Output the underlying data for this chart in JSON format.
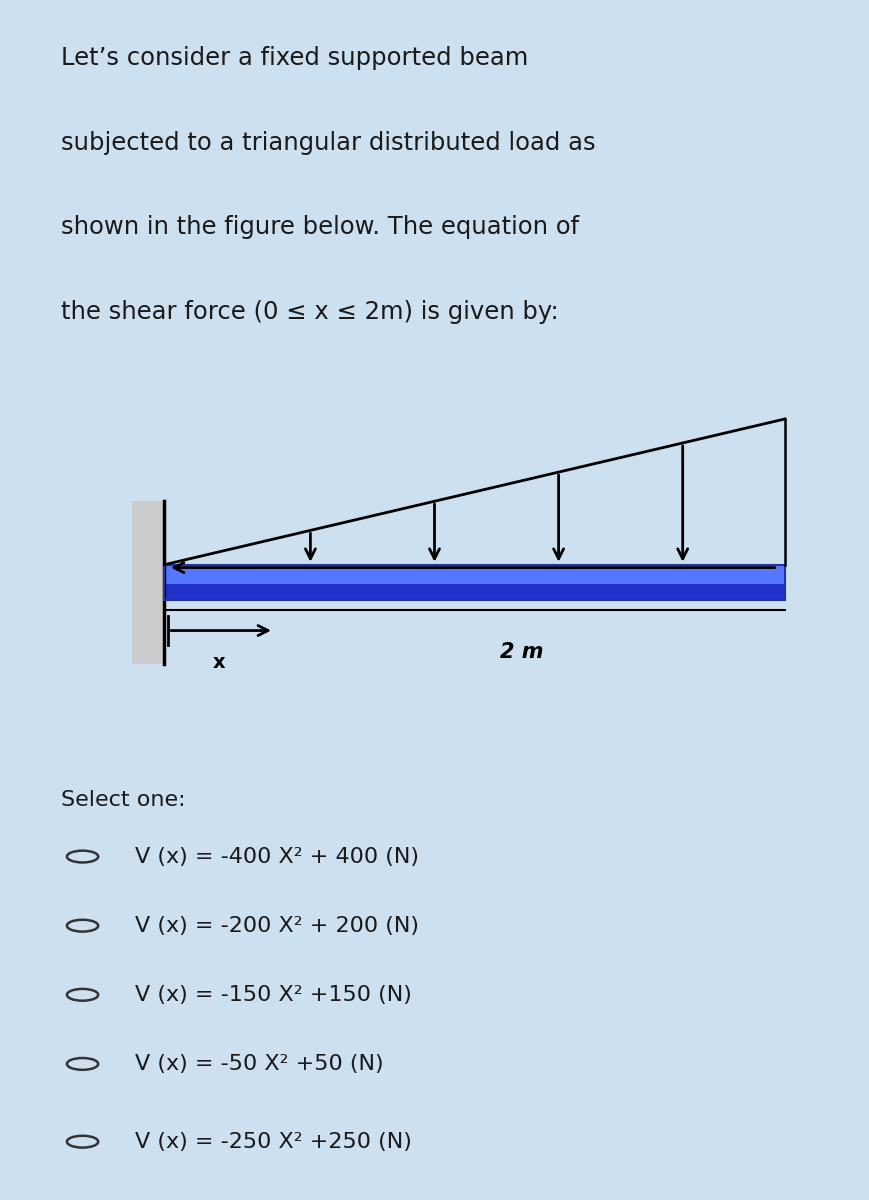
{
  "bg_outer": "#cce0f0",
  "bg_title": "#cce0f0",
  "bg_diagram": "#ffffff",
  "bg_options": "#cce0f0",
  "beam_top_color": "#5577ff",
  "beam_bot_color": "#2233cc",
  "wall_color": "#cccccc",
  "title_text_line1": "Let’s consider a fixed supported beam",
  "title_text_line2": "subjected to a triangular distributed load as",
  "title_text_line3": "shown in the figure below. The equation of",
  "title_text_line4": "the shear force (0 ≤ x ≤ 2m) is given by:",
  "select_text": "Select one:",
  "options": [
    "V (x) = -400 X² + 400 (N)",
    "V (x) = -200 X² + 200 (N)",
    "V (x) = -150 X² +150 (N)",
    "V (x) = -50 X² +50 (N)",
    "V (x) = -250 X² +250 (N)"
  ],
  "label_2m": "2 m",
  "label_x": "x"
}
